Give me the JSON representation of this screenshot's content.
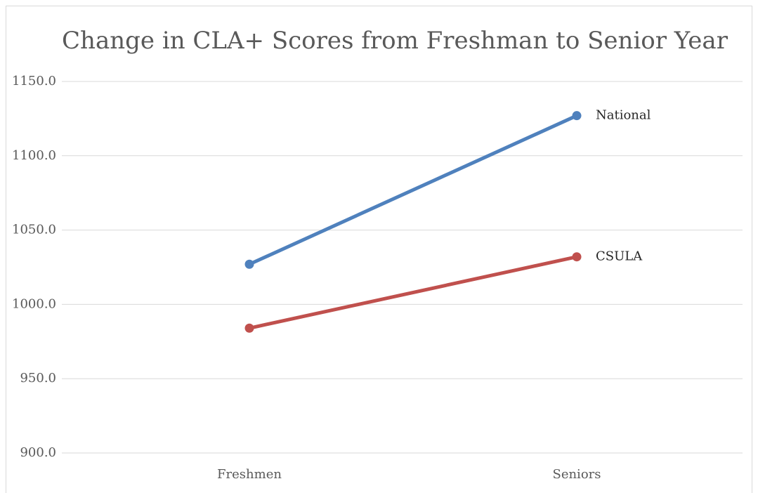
{
  "chart_data": {
    "type": "line",
    "title": "Change in CLA+ Scores from Freshman to Senior Year",
    "categories": [
      "Freshmen",
      "Seniors"
    ],
    "series": [
      {
        "name": "National",
        "color": "#4f81bd",
        "values": [
          1027,
          1127
        ]
      },
      {
        "name": "CSULA",
        "color": "#c0504d",
        "values": [
          984,
          1032
        ]
      }
    ],
    "ylim": [
      900,
      1150
    ],
    "yticks": [
      {
        "value": 900,
        "label": "900.0"
      },
      {
        "value": 950,
        "label": "950.0"
      },
      {
        "value": 1000,
        "label": "1000.0"
      },
      {
        "value": 1050,
        "label": "1050.0"
      },
      {
        "value": 1100,
        "label": "1100.0"
      },
      {
        "value": 1150,
        "label": "1150.0"
      }
    ],
    "grid": true
  }
}
